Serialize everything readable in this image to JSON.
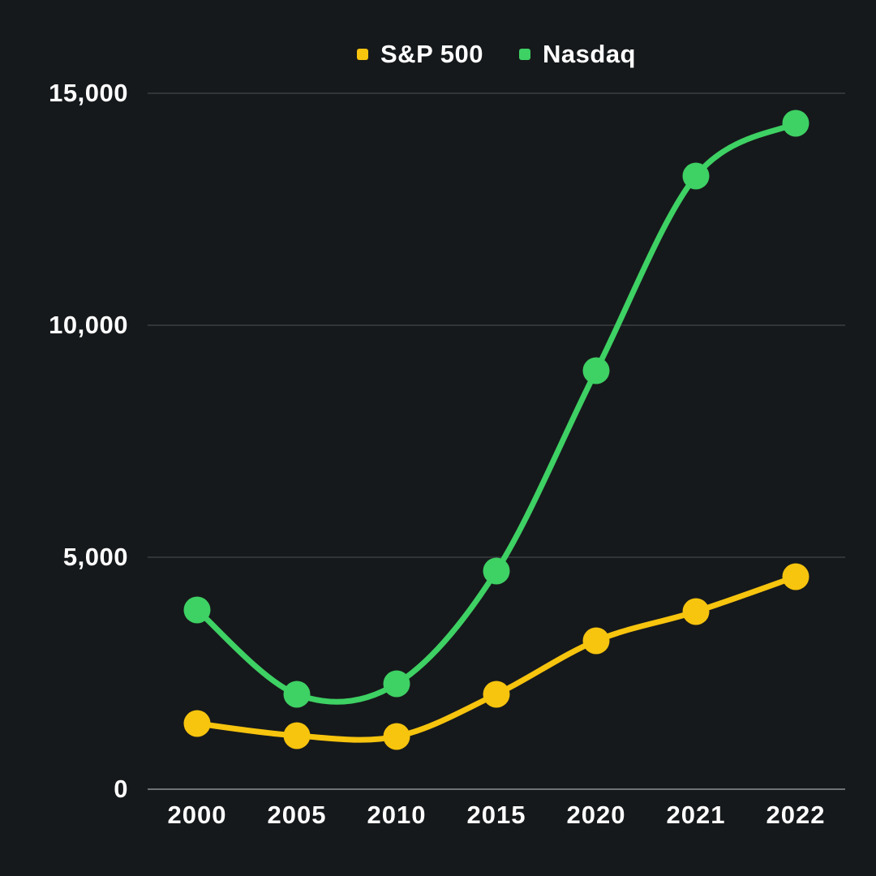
{
  "colors": {
    "background": "#16191b",
    "gridline": "#3b3f42",
    "axis_line": "#6e7277",
    "tick_label": "#ffffff",
    "sp500": "#f7c40e",
    "nasdaq": "#3ed164"
  },
  "legend": {
    "items": [
      {
        "id": "sp500",
        "label": "S&P 500",
        "color": "#f7c40e",
        "swatch": "square-swatch-icon"
      },
      {
        "id": "nasdaq",
        "label": "Nasdaq",
        "color": "#3ed164",
        "swatch": "square-swatch-icon"
      }
    ]
  },
  "chart_data": {
    "type": "line",
    "title": "",
    "xlabel": "",
    "ylabel": "",
    "categories": [
      "2000",
      "2005",
      "2010",
      "2015",
      "2020",
      "2021",
      "2022"
    ],
    "series": [
      {
        "name": "S&P 500",
        "color": "#f7c40e",
        "values": [
          1420,
          1150,
          1130,
          2050,
          3200,
          3830,
          4580
        ]
      },
      {
        "name": "Nasdaq",
        "color": "#3ed164",
        "values": [
          3870,
          2050,
          2280,
          4700,
          9020,
          13210,
          14360
        ]
      }
    ],
    "ylim": [
      0,
      15000
    ],
    "yticks": [
      {
        "value": 0,
        "label": "0"
      },
      {
        "value": 5000,
        "label": "5,000"
      },
      {
        "value": 10000,
        "label": "10,000"
      },
      {
        "value": 15000,
        "label": "15,000"
      }
    ],
    "grid": "horizontal",
    "legend_position": "top-center",
    "line_style": "smooth",
    "markers": "filled-circles"
  }
}
